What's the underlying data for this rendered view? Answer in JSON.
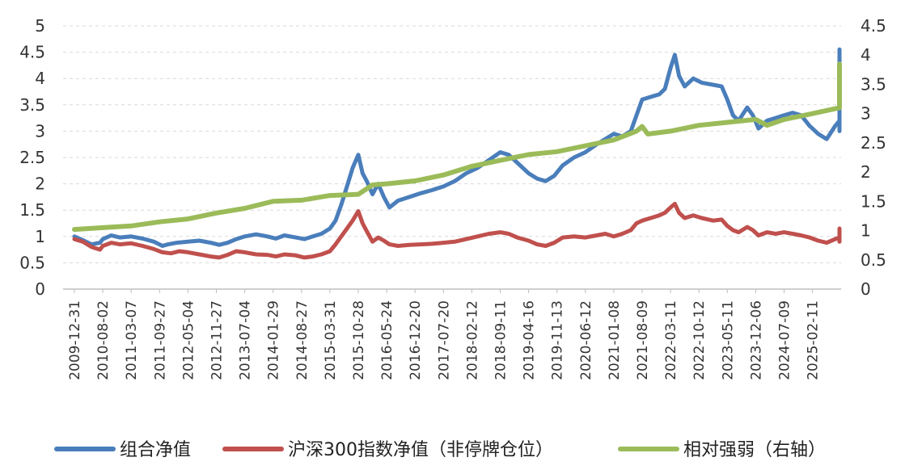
{
  "chart_data": {
    "type": "line",
    "x_ticks": [
      "2009-12-31",
      "2010-08-02",
      "2011-03-07",
      "2011-09-27",
      "2012-05-04",
      "2012-11-27",
      "2013-07-04",
      "2014-01-29",
      "2014-08-27",
      "2015-03-31",
      "2015-10-28",
      "2016-05-24",
      "2016-12-20",
      "2017-07-20",
      "2018-02-12",
      "2018-09-11",
      "2019-04-16",
      "2019-11-13",
      "2020-06-12",
      "2021-01-08",
      "2021-08-09",
      "2022-03-11",
      "2022-10-12",
      "2023-05-11",
      "2023-12-06",
      "2024-07-09",
      "2025-02-11"
    ],
    "left_axis": {
      "ylim": [
        0,
        5
      ],
      "ticks": [
        "0",
        "0.5",
        "1",
        "1.5",
        "2",
        "2.5",
        "3",
        "3.5",
        "4",
        "4.5",
        "5"
      ]
    },
    "right_axis": {
      "ylim": [
        0,
        4.5
      ],
      "ticks": [
        "0",
        "0.5",
        "1",
        "1.5",
        "2",
        "2.5",
        "3",
        "3.5",
        "4",
        "4.5"
      ]
    },
    "grid": "horizontal dashed",
    "legend_position": "bottom",
    "x_range": [
      0,
      28.5
    ],
    "series": [
      {
        "name": "组合净值",
        "axis": "left",
        "color": "#4a7ebb",
        "points": [
          [
            0,
            1.0
          ],
          [
            0.3,
            0.93
          ],
          [
            0.6,
            0.85
          ],
          [
            0.9,
            0.88
          ],
          [
            1.0,
            0.95
          ],
          [
            1.3,
            1.02
          ],
          [
            1.6,
            0.98
          ],
          [
            2.0,
            1.0
          ],
          [
            2.4,
            0.96
          ],
          [
            2.8,
            0.9
          ],
          [
            3.1,
            0.82
          ],
          [
            3.3,
            0.85
          ],
          [
            3.6,
            0.88
          ],
          [
            4.0,
            0.9
          ],
          [
            4.4,
            0.92
          ],
          [
            4.8,
            0.88
          ],
          [
            5.1,
            0.84
          ],
          [
            5.4,
            0.88
          ],
          [
            5.7,
            0.95
          ],
          [
            6.0,
            1.0
          ],
          [
            6.4,
            1.04
          ],
          [
            6.8,
            1.0
          ],
          [
            7.1,
            0.96
          ],
          [
            7.4,
            1.02
          ],
          [
            7.8,
            0.98
          ],
          [
            8.1,
            0.95
          ],
          [
            8.4,
            1.0
          ],
          [
            8.7,
            1.05
          ],
          [
            9.0,
            1.15
          ],
          [
            9.2,
            1.3
          ],
          [
            9.4,
            1.6
          ],
          [
            9.6,
            1.95
          ],
          [
            9.8,
            2.3
          ],
          [
            10.0,
            2.55
          ],
          [
            10.15,
            2.2
          ],
          [
            10.3,
            2.05
          ],
          [
            10.5,
            1.8
          ],
          [
            10.7,
            2.0
          ],
          [
            10.9,
            1.75
          ],
          [
            11.1,
            1.55
          ],
          [
            11.4,
            1.68
          ],
          [
            11.8,
            1.75
          ],
          [
            12.2,
            1.82
          ],
          [
            12.6,
            1.88
          ],
          [
            13.0,
            1.95
          ],
          [
            13.4,
            2.05
          ],
          [
            13.8,
            2.2
          ],
          [
            14.2,
            2.3
          ],
          [
            14.6,
            2.45
          ],
          [
            15.0,
            2.6
          ],
          [
            15.3,
            2.55
          ],
          [
            15.6,
            2.4
          ],
          [
            16.0,
            2.2
          ],
          [
            16.3,
            2.1
          ],
          [
            16.6,
            2.05
          ],
          [
            16.9,
            2.15
          ],
          [
            17.2,
            2.35
          ],
          [
            17.6,
            2.5
          ],
          [
            18.0,
            2.6
          ],
          [
            18.4,
            2.75
          ],
          [
            18.7,
            2.85
          ],
          [
            19.0,
            2.95
          ],
          [
            19.3,
            2.9
          ],
          [
            19.6,
            3.0
          ],
          [
            19.8,
            3.3
          ],
          [
            20.0,
            3.6
          ],
          [
            20.3,
            3.65
          ],
          [
            20.6,
            3.7
          ],
          [
            20.8,
            3.8
          ],
          [
            21.0,
            4.2
          ],
          [
            21.15,
            4.45
          ],
          [
            21.3,
            4.05
          ],
          [
            21.5,
            3.85
          ],
          [
            21.8,
            4.0
          ],
          [
            22.1,
            3.92
          ],
          [
            22.5,
            3.88
          ],
          [
            22.8,
            3.85
          ],
          [
            23.0,
            3.6
          ],
          [
            23.2,
            3.3
          ],
          [
            23.4,
            3.2
          ],
          [
            23.7,
            3.45
          ],
          [
            23.9,
            3.3
          ],
          [
            24.1,
            3.05
          ],
          [
            24.4,
            3.2
          ],
          [
            24.7,
            3.25
          ],
          [
            25.0,
            3.3
          ],
          [
            25.3,
            3.35
          ],
          [
            25.6,
            3.3
          ],
          [
            25.9,
            3.1
          ],
          [
            26.2,
            2.95
          ],
          [
            26.5,
            2.85
          ],
          [
            26.8,
            3.1
          ],
          [
            27.1,
            3.2
          ],
          [
            27.4,
            3.05
          ],
          [
            27.6,
            3.0
          ],
          [
            27.75,
            3.85
          ],
          [
            28.0,
            3.55
          ],
          [
            28.3,
            3.6
          ],
          [
            28.6,
            3.5
          ],
          [
            28.8,
            3.45
          ],
          [
            29.0,
            3.55
          ],
          [
            29.2,
            4.0
          ],
          [
            29.5,
            4.3
          ],
          [
            29.8,
            4.55
          ]
        ]
      },
      {
        "name": "沪深300指数净值（非停牌仓位）",
        "axis": "left",
        "color": "#c0504d",
        "points": [
          [
            0,
            0.95
          ],
          [
            0.3,
            0.9
          ],
          [
            0.6,
            0.8
          ],
          [
            0.9,
            0.75
          ],
          [
            1.0,
            0.82
          ],
          [
            1.3,
            0.88
          ],
          [
            1.6,
            0.85
          ],
          [
            2.0,
            0.87
          ],
          [
            2.4,
            0.82
          ],
          [
            2.8,
            0.76
          ],
          [
            3.1,
            0.7
          ],
          [
            3.4,
            0.68
          ],
          [
            3.7,
            0.72
          ],
          [
            4.0,
            0.7
          ],
          [
            4.4,
            0.66
          ],
          [
            4.8,
            0.62
          ],
          [
            5.1,
            0.6
          ],
          [
            5.4,
            0.65
          ],
          [
            5.7,
            0.72
          ],
          [
            6.0,
            0.7
          ],
          [
            6.4,
            0.66
          ],
          [
            6.8,
            0.65
          ],
          [
            7.1,
            0.62
          ],
          [
            7.4,
            0.66
          ],
          [
            7.8,
            0.64
          ],
          [
            8.1,
            0.6
          ],
          [
            8.4,
            0.62
          ],
          [
            8.7,
            0.66
          ],
          [
            9.0,
            0.72
          ],
          [
            9.2,
            0.85
          ],
          [
            9.4,
            1.0
          ],
          [
            9.6,
            1.15
          ],
          [
            9.8,
            1.3
          ],
          [
            10.0,
            1.48
          ],
          [
            10.15,
            1.25
          ],
          [
            10.3,
            1.1
          ],
          [
            10.5,
            0.9
          ],
          [
            10.7,
            0.98
          ],
          [
            10.9,
            0.92
          ],
          [
            11.1,
            0.85
          ],
          [
            11.4,
            0.82
          ],
          [
            11.8,
            0.84
          ],
          [
            12.2,
            0.85
          ],
          [
            12.6,
            0.86
          ],
          [
            13.0,
            0.88
          ],
          [
            13.4,
            0.9
          ],
          [
            13.8,
            0.95
          ],
          [
            14.2,
            1.0
          ],
          [
            14.6,
            1.05
          ],
          [
            15.0,
            1.08
          ],
          [
            15.3,
            1.05
          ],
          [
            15.6,
            0.98
          ],
          [
            16.0,
            0.92
          ],
          [
            16.3,
            0.85
          ],
          [
            16.6,
            0.82
          ],
          [
            16.9,
            0.88
          ],
          [
            17.2,
            0.98
          ],
          [
            17.6,
            1.0
          ],
          [
            18.0,
            0.98
          ],
          [
            18.4,
            1.02
          ],
          [
            18.7,
            1.05
          ],
          [
            19.0,
            1.0
          ],
          [
            19.3,
            1.05
          ],
          [
            19.6,
            1.12
          ],
          [
            19.8,
            1.25
          ],
          [
            20.0,
            1.3
          ],
          [
            20.3,
            1.35
          ],
          [
            20.6,
            1.4
          ],
          [
            20.8,
            1.45
          ],
          [
            21.0,
            1.55
          ],
          [
            21.15,
            1.62
          ],
          [
            21.3,
            1.45
          ],
          [
            21.5,
            1.35
          ],
          [
            21.8,
            1.4
          ],
          [
            22.1,
            1.35
          ],
          [
            22.5,
            1.3
          ],
          [
            22.8,
            1.32
          ],
          [
            23.0,
            1.2
          ],
          [
            23.2,
            1.12
          ],
          [
            23.4,
            1.08
          ],
          [
            23.7,
            1.18
          ],
          [
            23.9,
            1.12
          ],
          [
            24.1,
            1.02
          ],
          [
            24.4,
            1.08
          ],
          [
            24.7,
            1.05
          ],
          [
            25.0,
            1.08
          ],
          [
            25.3,
            1.05
          ],
          [
            25.6,
            1.02
          ],
          [
            25.9,
            0.98
          ],
          [
            26.2,
            0.92
          ],
          [
            26.5,
            0.88
          ],
          [
            26.8,
            0.95
          ],
          [
            27.1,
            0.98
          ],
          [
            27.4,
            0.95
          ],
          [
            27.6,
            0.9
          ],
          [
            27.75,
            1.12
          ],
          [
            28.0,
            1.05
          ],
          [
            28.3,
            1.08
          ],
          [
            28.6,
            1.05
          ],
          [
            28.8,
            1.0
          ],
          [
            29.0,
            1.05
          ],
          [
            29.2,
            1.1
          ],
          [
            29.5,
            1.12
          ],
          [
            29.8,
            1.15
          ]
        ]
      },
      {
        "name": "相对强弱（右轴）",
        "axis": "right",
        "color": "#9bbb59",
        "points": [
          [
            0,
            1.02
          ],
          [
            1.0,
            1.05
          ],
          [
            2.0,
            1.08
          ],
          [
            3.0,
            1.15
          ],
          [
            4.0,
            1.2
          ],
          [
            5.0,
            1.3
          ],
          [
            6.0,
            1.38
          ],
          [
            7.0,
            1.5
          ],
          [
            8.0,
            1.52
          ],
          [
            9.0,
            1.6
          ],
          [
            10.0,
            1.62
          ],
          [
            10.5,
            1.78
          ],
          [
            11.0,
            1.8
          ],
          [
            12.0,
            1.85
          ],
          [
            13.0,
            1.95
          ],
          [
            14.0,
            2.1
          ],
          [
            15.0,
            2.2
          ],
          [
            16.0,
            2.3
          ],
          [
            17.0,
            2.35
          ],
          [
            18.0,
            2.45
          ],
          [
            19.0,
            2.55
          ],
          [
            19.8,
            2.7
          ],
          [
            20.0,
            2.78
          ],
          [
            20.2,
            2.65
          ],
          [
            21.0,
            2.7
          ],
          [
            22.0,
            2.8
          ],
          [
            23.0,
            2.85
          ],
          [
            24.0,
            2.9
          ],
          [
            24.4,
            2.8
          ],
          [
            25.0,
            2.9
          ],
          [
            26.0,
            3.0
          ],
          [
            27.0,
            3.1
          ],
          [
            28.0,
            3.25
          ],
          [
            28.5,
            3.2
          ],
          [
            29.0,
            3.35
          ],
          [
            29.3,
            3.6
          ],
          [
            29.8,
            3.85
          ]
        ]
      }
    ]
  }
}
